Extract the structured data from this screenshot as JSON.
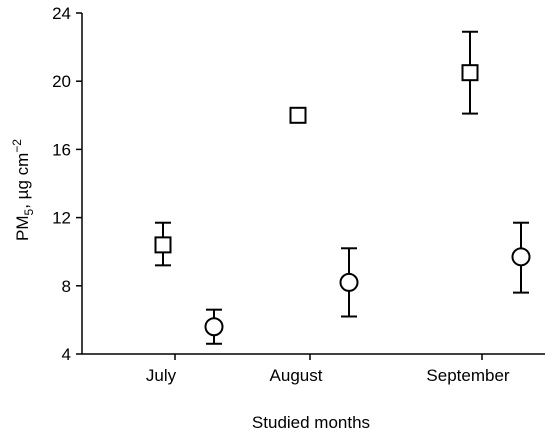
{
  "chart_data": {
    "type": "scatter",
    "xlabel": "Studied months",
    "ylabel": {
      "base": "PM",
      "subscript": "5",
      "unit": ", µg cm",
      "superscript": "−2"
    },
    "categories": [
      "July",
      "August",
      "September"
    ],
    "ylim": [
      4,
      24
    ],
    "yticks": [
      4,
      8,
      12,
      16,
      20,
      24
    ],
    "grid": false,
    "legend": "none",
    "series": [
      {
        "marker": "square",
        "x": [
          "July",
          "August",
          "September"
        ],
        "y": [
          10.4,
          18.0,
          20.5
        ],
        "error_low": [
          9.2,
          17.7,
          18.1
        ],
        "error_high": [
          11.7,
          18.3,
          22.9
        ]
      },
      {
        "marker": "circle",
        "x": [
          "July",
          "August",
          "September"
        ],
        "y": [
          5.6,
          8.2,
          9.7
        ],
        "error_low": [
          4.6,
          6.2,
          7.6
        ],
        "error_high": [
          6.6,
          10.2,
          11.7
        ]
      }
    ]
  }
}
